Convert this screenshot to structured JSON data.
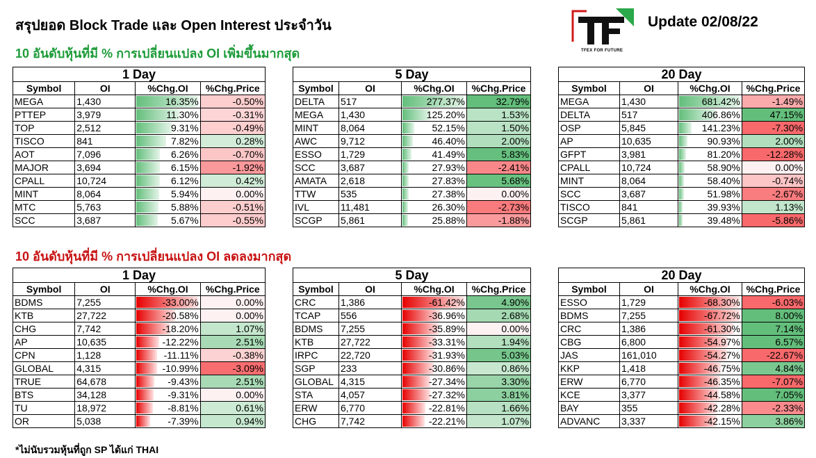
{
  "title": "สรุปยอด Block Trade และ Open Interest ประจำวัน",
  "update": "Update 02/08/22",
  "logo": {
    "letters": "TF",
    "tagline": "TFEX FOR FUTURE"
  },
  "section_up_title": "10 อันดับหุ้นที่มี % การเปลี่ยนแปลง OI เพิ่มขึ้นมากสุด",
  "section_down_title": "10 อันดับหุ้นที่มี % การเปลี่ยนแปลง OI ลดลงมากสุด",
  "footnote": "*ไม่นับรวมหุ้นที่ถูก SP ได้แก่ THAI",
  "columns": [
    "Symbol",
    "OI",
    "%Chg.OI",
    "%Chg.Price"
  ],
  "colors": {
    "up_title": "#1e9c3a",
    "down_title": "#c81414",
    "bar_pos": "#63be7b",
    "bar_neg": "#e60000",
    "price_pos": "#63be7b",
    "price_neg": "#f8696b"
  },
  "tables": [
    {
      "id": "up-1day",
      "period": "1 Day",
      "rows": [
        [
          "MEGA",
          "1,430",
          "16.35%",
          "-0.50%"
        ],
        [
          "PTTEP",
          "3,979",
          "11.30%",
          "-0.31%"
        ],
        [
          "TOP",
          "2,512",
          "9.31%",
          "-0.49%"
        ],
        [
          "TISCO",
          "841",
          "7.82%",
          "0.28%"
        ],
        [
          "AOT",
          "7,096",
          "6.26%",
          "-0.70%"
        ],
        [
          "MAJOR",
          "3,694",
          "6.15%",
          "-1.92%"
        ],
        [
          "CPALL",
          "10,724",
          "6.12%",
          "0.42%"
        ],
        [
          "MINT",
          "8,064",
          "5.94%",
          "0.00%"
        ],
        [
          "MTC",
          "5,763",
          "5.88%",
          "-0.51%"
        ],
        [
          "SCC",
          "3,687",
          "5.67%",
          "-0.55%"
        ]
      ]
    },
    {
      "id": "up-5day",
      "period": "5 Day",
      "rows": [
        [
          "DELTA",
          "517",
          "277.37%",
          "32.79%"
        ],
        [
          "MEGA",
          "1,430",
          "125.20%",
          "1.53%"
        ],
        [
          "MINT",
          "8,064",
          "52.15%",
          "1.50%"
        ],
        [
          "AWC",
          "9,712",
          "46.40%",
          "2.00%"
        ],
        [
          "ESSO",
          "1,729",
          "41.49%",
          "5.83%"
        ],
        [
          "SCC",
          "3,687",
          "27.93%",
          "-2.41%"
        ],
        [
          "AMATA",
          "2,618",
          "27.83%",
          "5.68%"
        ],
        [
          "TTW",
          "535",
          "27.38%",
          "0.00%"
        ],
        [
          "IVL",
          "11,481",
          "26.30%",
          "-2.73%"
        ],
        [
          "SCGP",
          "5,861",
          "25.88%",
          "-1.88%"
        ]
      ]
    },
    {
      "id": "up-20day",
      "period": "20 Day",
      "rows": [
        [
          "MEGA",
          "1,430",
          "681.42%",
          "-1.49%"
        ],
        [
          "DELTA",
          "517",
          "406.86%",
          "47.15%"
        ],
        [
          "OSP",
          "5,845",
          "141.23%",
          "-7.30%"
        ],
        [
          "AP",
          "10,635",
          "90.93%",
          "2.00%"
        ],
        [
          "GFPT",
          "3,981",
          "81.20%",
          "-12.28%"
        ],
        [
          "CPALL",
          "10,724",
          "58.90%",
          "0.00%"
        ],
        [
          "MINT",
          "8,064",
          "58.40%",
          "-0.74%"
        ],
        [
          "SCC",
          "3,687",
          "51.98%",
          "-2.67%"
        ],
        [
          "TISCO",
          "841",
          "39.93%",
          "1.13%"
        ],
        [
          "SCGP",
          "5,861",
          "39.48%",
          "-5.86%"
        ]
      ]
    },
    {
      "id": "down-1day",
      "period": "1 Day",
      "rows": [
        [
          "BDMS",
          "7,255",
          "-33.00%",
          "0.00%"
        ],
        [
          "KTB",
          "27,722",
          "-20.58%",
          "0.00%"
        ],
        [
          "CHG",
          "7,742",
          "-18.20%",
          "1.07%"
        ],
        [
          "AP",
          "10,635",
          "-12.22%",
          "2.51%"
        ],
        [
          "CPN",
          "1,128",
          "-11.11%",
          "-0.38%"
        ],
        [
          "GLOBAL",
          "4,315",
          "-10.99%",
          "-3.09%"
        ],
        [
          "TRUE",
          "64,678",
          "-9.43%",
          "2.51%"
        ],
        [
          "BTS",
          "34,128",
          "-9.31%",
          "0.00%"
        ],
        [
          "TU",
          "18,972",
          "-8.81%",
          "0.61%"
        ],
        [
          "OR",
          "5,038",
          "-7.39%",
          "0.94%"
        ]
      ]
    },
    {
      "id": "down-5day",
      "period": "5 Day",
      "rows": [
        [
          "CRC",
          "1,386",
          "-61.42%",
          "4.90%"
        ],
        [
          "TCAP",
          "556",
          "-36.96%",
          "2.68%"
        ],
        [
          "BDMS",
          "7,255",
          "-35.89%",
          "0.00%"
        ],
        [
          "KTB",
          "27,722",
          "-33.31%",
          "1.94%"
        ],
        [
          "IRPC",
          "22,720",
          "-31.93%",
          "5.03%"
        ],
        [
          "SGP",
          "233",
          "-30.86%",
          "0.86%"
        ],
        [
          "GLOBAL",
          "4,315",
          "-27.34%",
          "3.30%"
        ],
        [
          "STA",
          "4,057",
          "-27.32%",
          "3.81%"
        ],
        [
          "ERW",
          "6,770",
          "-22.81%",
          "1.66%"
        ],
        [
          "CHG",
          "7,742",
          "-22.21%",
          "1.07%"
        ]
      ]
    },
    {
      "id": "down-20day",
      "period": "20 Day",
      "rows": [
        [
          "ESSO",
          "1,729",
          "-68.30%",
          "-6.03%"
        ],
        [
          "BDMS",
          "7,255",
          "-67.72%",
          "8.00%"
        ],
        [
          "CRC",
          "1,386",
          "-61.30%",
          "7.14%"
        ],
        [
          "CBG",
          "6,800",
          "-54.97%",
          "6.57%"
        ],
        [
          "JAS",
          "161,010",
          "-54.27%",
          "-22.67%"
        ],
        [
          "KKP",
          "1,418",
          "-46.75%",
          "4.84%"
        ],
        [
          "ERW",
          "6,770",
          "-46.35%",
          "-7.07%"
        ],
        [
          "KCE",
          "3,377",
          "-44.58%",
          "7.05%"
        ],
        [
          "BAY",
          "355",
          "-42.28%",
          "-2.33%"
        ],
        [
          "ADVANC",
          "3,337",
          "-42.15%",
          "3.86%"
        ]
      ]
    }
  ]
}
